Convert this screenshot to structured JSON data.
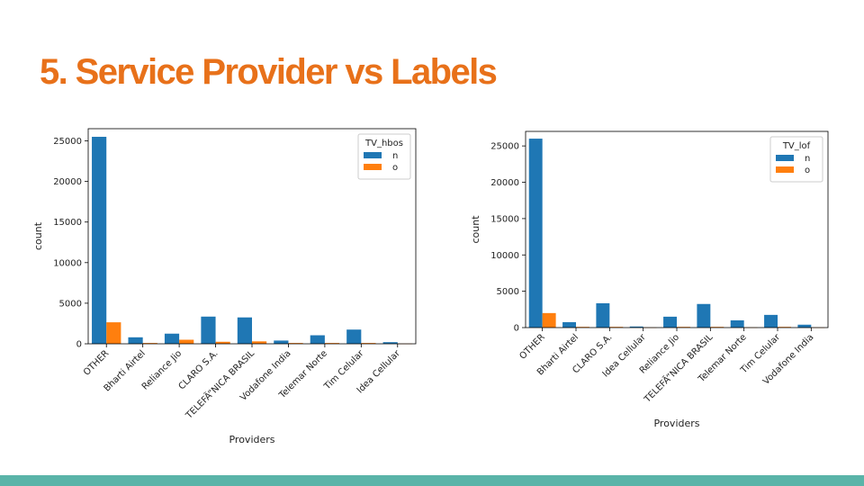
{
  "slide": {
    "title": "5. Service Provider vs Labels",
    "accent_color": "#e8711a",
    "bar_color": "#5ab4a8"
  },
  "chart_data": [
    {
      "type": "bar",
      "xlabel": "Providers",
      "ylabel": "count",
      "ylim": [
        0,
        26500
      ],
      "yticks": [
        0,
        5000,
        10000,
        15000,
        20000,
        25000
      ],
      "legend": {
        "title": "TV_hbos",
        "placement": "top-right"
      },
      "categories": [
        "OTHER",
        "Bharti Airtel",
        "Reliance Jio",
        "CLARO S.A.",
        "TELEFÃ”NICA BRASIL",
        "Vodafone India",
        "Telemar Norte",
        "Tim Celular",
        "Idea Cellular"
      ],
      "series": [
        {
          "name": "n",
          "color": "#1f77b4",
          "values": [
            25500,
            800,
            1250,
            3350,
            3250,
            400,
            1050,
            1750,
            200
          ]
        },
        {
          "name": "o",
          "color": "#ff7f0e",
          "values": [
            2650,
            100,
            500,
            250,
            300,
            100,
            100,
            100,
            20
          ]
        }
      ]
    },
    {
      "type": "bar",
      "xlabel": "Providers",
      "ylabel": "count",
      "ylim": [
        0,
        27000
      ],
      "yticks": [
        0,
        5000,
        10000,
        15000,
        20000,
        25000
      ],
      "legend": {
        "title": "TV_lof",
        "placement": "top-right"
      },
      "categories": [
        "OTHER",
        "Bharti Airtel",
        "CLARO S.A.",
        "Idea Cellular",
        "Reliance Jio",
        "TELEFÃ”NICA BRASIL",
        "Telemar Norte",
        "Tim Celular",
        "Vodafone India"
      ],
      "series": [
        {
          "name": "n",
          "color": "#1f77b4",
          "values": [
            26000,
            750,
            3350,
            150,
            1500,
            3250,
            1000,
            1750,
            400
          ]
        },
        {
          "name": "o",
          "color": "#ff7f0e",
          "values": [
            2000,
            100,
            100,
            20,
            100,
            100,
            30,
            100,
            20
          ]
        }
      ]
    }
  ]
}
